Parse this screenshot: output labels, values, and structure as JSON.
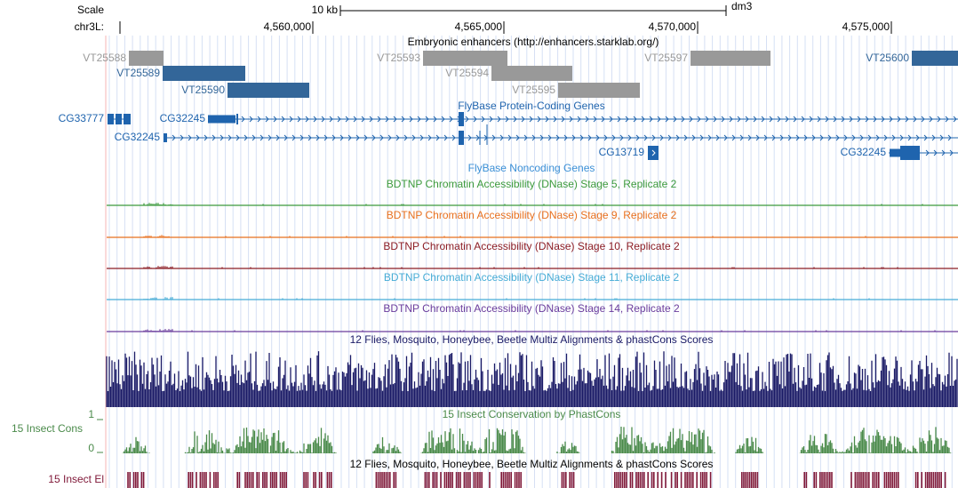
{
  "ruler": {
    "scale_label": "Scale",
    "scale_bar": "10 kb",
    "assembly": "dm3",
    "chrom": "chr3L:",
    "ticks": [
      "4,560,000",
      "4,565,000",
      "4,570,000",
      "4,575,000"
    ]
  },
  "enhancers": {
    "title": "Embryonic enhancers (http://enhancers.starklab.org/)",
    "features": [
      {
        "label": "VT25588",
        "color": "#999999"
      },
      {
        "label": "VT25593",
        "color": "#999999"
      },
      {
        "label": "VT25597",
        "color": "#999999"
      },
      {
        "label": "VT25600",
        "color": "#336699"
      },
      {
        "label": "VT25589",
        "color": "#336699"
      },
      {
        "label": "VT25594",
        "color": "#999999"
      },
      {
        "label": "VT25590",
        "color": "#336699"
      },
      {
        "label": "VT25595",
        "color": "#999999"
      }
    ]
  },
  "protein_genes": {
    "title": "FlyBase Protein-Coding Genes",
    "genes": [
      "CG33777",
      "CG32245",
      "CG32245",
      "CG13719",
      "CG32245"
    ]
  },
  "noncoding_genes": {
    "title": "FlyBase Noncoding Genes"
  },
  "dnase": [
    {
      "title": "BDTNP Chromatin Accessibility (DNase) Stage 5, Replicate 2",
      "color": "#3c9a3c"
    },
    {
      "title": "BDTNP Chromatin Accessibility (DNase) Stage 9, Replicate 2",
      "color": "#e8701e"
    },
    {
      "title": "BDTNP Chromatin Accessibility (DNase) Stage 10, Replicate 2",
      "color": "#8b1c24"
    },
    {
      "title": "BDTNP Chromatin Accessibility (DNase) Stage 11, Replicate 2",
      "color": "#46acd6"
    },
    {
      "title": "BDTNP Chromatin Accessibility (DNase) Stage 14, Replicate 2",
      "color": "#6a3c9c"
    }
  ],
  "multiz": {
    "title": "12 Flies, Mosquito, Honeybee, Beetle Multiz Alignments & phastCons Scores",
    "color": "#1a1a66"
  },
  "phastcons": {
    "label": "15 Insect Cons",
    "title": "15 Insect Conservation by PhastCons",
    "max": "1",
    "min": "0",
    "color": "#4a8a4a"
  },
  "elements": {
    "label": "15 Insect El",
    "title": "12 Flies, Mosquito, Honeybee, Beetle Multiz Alignments & phastCons Scores",
    "color": "#801a3a"
  }
}
